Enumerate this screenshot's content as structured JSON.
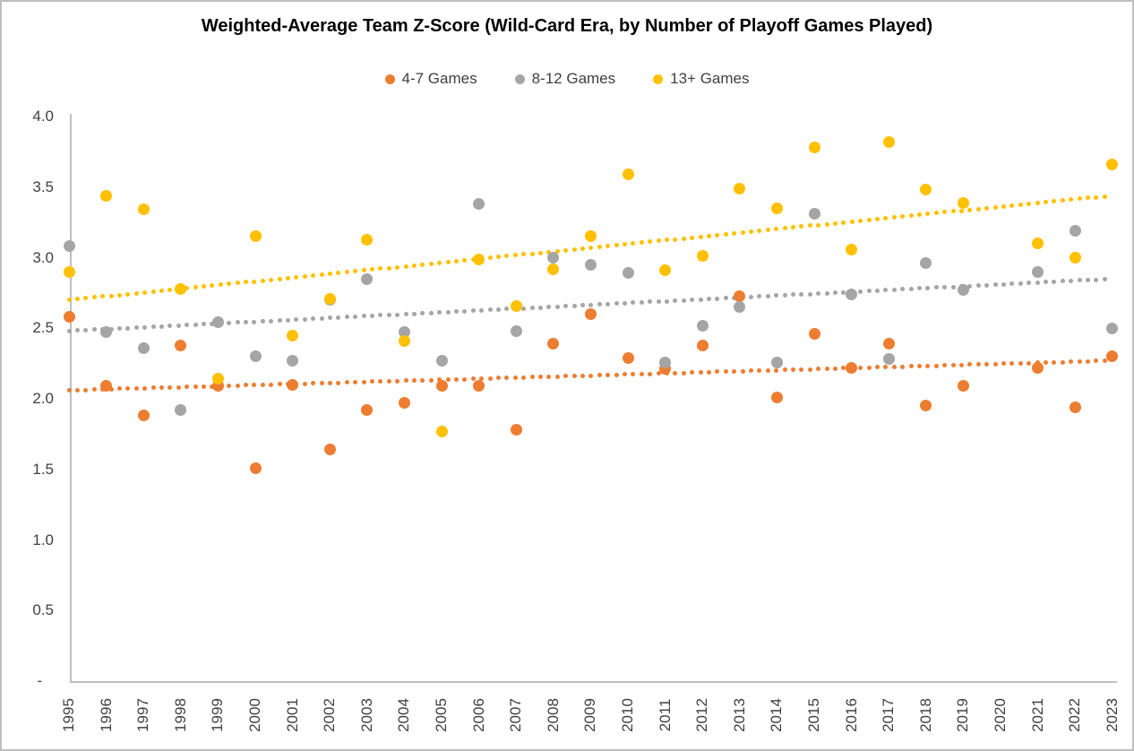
{
  "chart": {
    "title": "Weighted-Average Team Z-Score (Wild-Card Era, by Number of Playoff Games Played)"
  },
  "colors": {
    "background": "#FFFFFF",
    "border": "#BFBFBF",
    "axis_line": "#BFBFBF",
    "tick_text": "#404040",
    "title_text": "#000000"
  },
  "chart_data": {
    "type": "scatter",
    "title": "Weighted-Average Team Z-Score (Wild-Card Era, by Number of Playoff Games Played)",
    "legend_position": "top",
    "grid": false,
    "x": [
      1995,
      1996,
      1997,
      1998,
      1999,
      2000,
      2001,
      2002,
      2003,
      2004,
      2005,
      2006,
      2007,
      2008,
      2009,
      2010,
      2011,
      2012,
      2013,
      2014,
      2015,
      2016,
      2017,
      2018,
      2019,
      2020,
      2021,
      2022,
      2023
    ],
    "y_axis": {
      "min": 0,
      "max": 4,
      "tick_step": 0.5,
      "tick_labels": [
        "4.0",
        "3.5",
        "3.0",
        "2.5",
        "2.0",
        "1.5",
        "1.0",
        "0.5",
        "-"
      ]
    },
    "series": [
      {
        "name": "4-7 Games",
        "color": "#ED7D31",
        "values": [
          2.58,
          2.09,
          1.88,
          2.38,
          2.09,
          1.51,
          2.1,
          1.64,
          1.92,
          1.97,
          2.09,
          2.09,
          1.78,
          2.39,
          2.6,
          2.29,
          2.21,
          2.38,
          2.73,
          2.01,
          2.46,
          2.22,
          2.39,
          1.95,
          2.09,
          null,
          2.22,
          1.94,
          2.3
        ],
        "trendline": {
          "style": "dotted",
          "start": 2.06,
          "end": 2.27
        }
      },
      {
        "name": "8-12 Games",
        "color": "#A5A5A5",
        "values": [
          3.08,
          2.47,
          2.36,
          1.92,
          2.54,
          2.3,
          2.27,
          2.7,
          2.85,
          2.47,
          2.27,
          3.38,
          2.48,
          3.0,
          2.95,
          2.89,
          2.26,
          2.52,
          2.65,
          2.26,
          3.31,
          2.74,
          2.28,
          2.96,
          2.77,
          null,
          2.9,
          3.19,
          2.5
        ],
        "trendline": {
          "style": "dotted",
          "start": 2.48,
          "end": 2.85
        }
      },
      {
        "name": "13+ Games",
        "color": "#FFC000",
        "values": [
          2.9,
          3.44,
          3.34,
          2.78,
          2.14,
          3.15,
          2.45,
          2.71,
          3.13,
          2.41,
          1.77,
          2.99,
          2.66,
          2.92,
          3.15,
          3.59,
          2.91,
          3.01,
          3.49,
          3.35,
          3.78,
          3.06,
          3.82,
          3.48,
          3.39,
          null,
          3.1,
          3.0,
          3.66
        ],
        "trendline": {
          "style": "dotted",
          "start": 2.7,
          "end": 3.44
        }
      }
    ]
  }
}
